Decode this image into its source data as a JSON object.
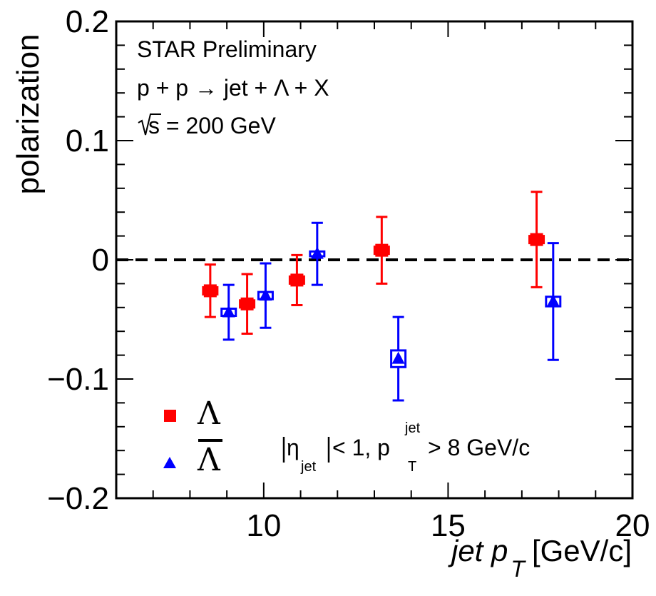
{
  "chart_data": {
    "type": "scatter",
    "title": "",
    "xlabel": {
      "italic": "jet p",
      "sub": "T",
      "unit": "[GeV/c]"
    },
    "ylabel": "polarization",
    "xlim": [
      6,
      20
    ],
    "ylim": [
      -0.2,
      0.2
    ],
    "xticks": [
      {
        "value": 10,
        "label": "10"
      },
      {
        "value": 15,
        "label": "15"
      },
      {
        "value": 20,
        "label": "20"
      }
    ],
    "yticks": [
      {
        "value": 0.2,
        "label": "0.2"
      },
      {
        "value": 0.1,
        "label": "0.1"
      },
      {
        "value": 0,
        "label": "0"
      },
      {
        "value": -0.1,
        "label": "−0.1"
      },
      {
        "value": -0.2,
        "label": "−0.2"
      }
    ],
    "reference_line": {
      "y": 0,
      "style": "dashed"
    },
    "annotations": {
      "experiment": "STAR Preliminary",
      "reaction": "p + p → jet + Λ + X",
      "energy_sqrt": "s",
      "energy_value": " = 200 GeV",
      "cut_eta_sym": "η",
      "cut_eta_sub": "jet",
      "cut_eta_rest": "< 1, p",
      "cut_pt_sub": "T",
      "cut_pt_sup": "jet",
      "cut_pt_rest": "> 8 GeV/c"
    },
    "series": [
      {
        "name": "Λ",
        "legend_label": "Λ",
        "color": "#ff0000",
        "marker": "filled-square",
        "points": [
          {
            "x": 8.55,
            "y": -0.026,
            "err": 0.022,
            "sys": 0.003
          },
          {
            "x": 9.55,
            "y": -0.037,
            "err": 0.025,
            "sys": 0.003
          },
          {
            "x": 10.9,
            "y": -0.017,
            "err": 0.021,
            "sys": 0.003
          },
          {
            "x": 13.2,
            "y": 0.008,
            "err": 0.028,
            "sys": 0.003
          },
          {
            "x": 17.4,
            "y": 0.017,
            "err": 0.04,
            "sys": 0.003
          }
        ]
      },
      {
        "name": "anti-Λ",
        "legend_label": "Λ",
        "legend_overline": true,
        "color": "#0000ff",
        "marker": "filled-triangle",
        "points": [
          {
            "x": 9.05,
            "y": -0.044,
            "err": 0.023,
            "sys": 0.003
          },
          {
            "x": 10.05,
            "y": -0.03,
            "err": 0.027,
            "sys": 0.003
          },
          {
            "x": 11.45,
            "y": 0.005,
            "err": 0.026,
            "sys": 0.002
          },
          {
            "x": 13.65,
            "y": -0.083,
            "err": 0.035,
            "sys": 0.007
          },
          {
            "x": 17.85,
            "y": -0.035,
            "err": 0.049,
            "sys": 0.004
          }
        ]
      }
    ]
  }
}
